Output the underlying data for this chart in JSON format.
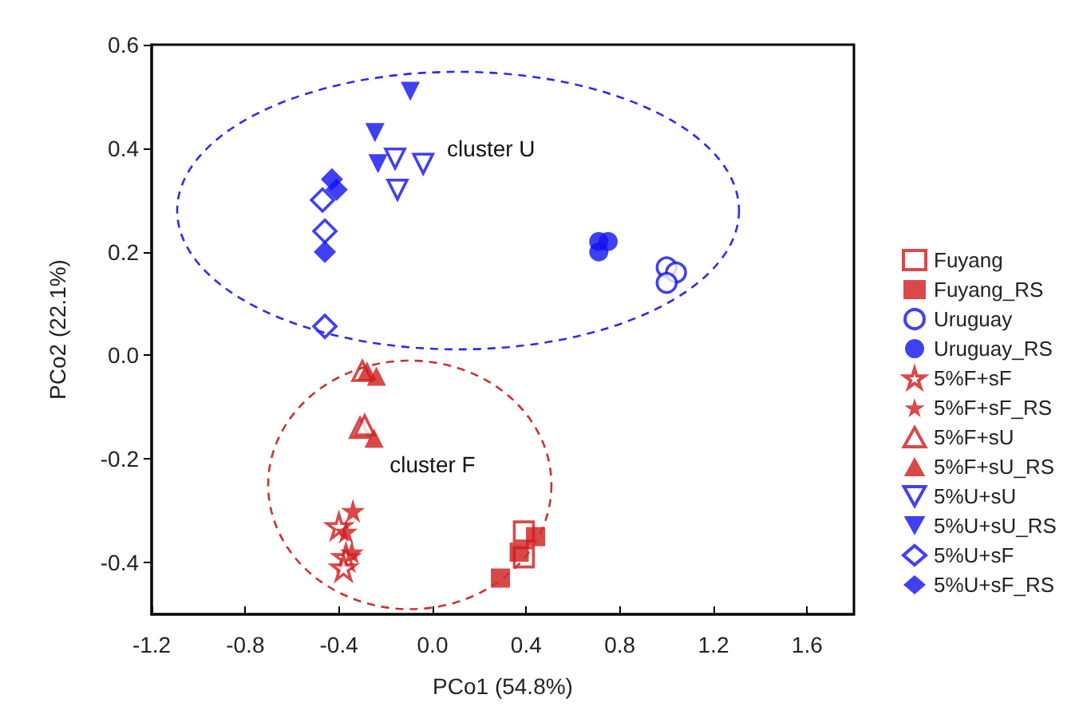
{
  "chart_data": {
    "type": "scatter",
    "xlabel": "PCo1 (54.8%)",
    "ylabel": "PCo2 (22.1%)",
    "xlim": [
      -1.2,
      1.8
    ],
    "xticks": [
      -1.2,
      -0.8,
      -0.4,
      {
        "value": 0,
        "label": "0.0"
      },
      0.4,
      0.8,
      1.2,
      1.6
    ],
    "ylim": [
      -0.5,
      0.6
    ],
    "yticks": [
      -0.4,
      -0.2,
      {
        "value": 0,
        "label": "0.0"
      },
      0.2,
      0.4,
      0.6
    ],
    "legend": "right",
    "annotations": [
      "cluster U",
      "cluster F"
    ],
    "series": [
      {
        "name": "Fuyang",
        "color": "#d01c1c",
        "marker": "square-open",
        "x": [
          0.39,
          0.39
        ],
        "values": [
          -0.34,
          -0.39
        ]
      },
      {
        "name": "Fuyang_RS",
        "color": "#d01c1c",
        "marker": "square",
        "x": [
          0.44,
          0.37,
          0.29
        ],
        "values": [
          -0.35,
          -0.38,
          -0.43
        ]
      },
      {
        "name": "Uruguay",
        "color": "#1010f0",
        "marker": "circle-open",
        "x": [
          1.0,
          1.04,
          1.0
        ],
        "values": [
          0.17,
          0.16,
          0.14
        ]
      },
      {
        "name": "Uruguay_RS",
        "color": "#1010f0",
        "marker": "circle",
        "x": [
          0.71,
          0.75,
          0.71
        ],
        "values": [
          0.22,
          0.22,
          0.2
        ]
      },
      {
        "name": "5%F+sF",
        "color": "#d01c1c",
        "marker": "star-open",
        "x": [
          -0.4,
          -0.37,
          -0.38
        ],
        "values": [
          -0.33,
          -0.39,
          -0.41
        ]
      },
      {
        "name": "5%F+sF_RS",
        "color": "#d01c1c",
        "marker": "star",
        "x": [
          -0.34,
          -0.37,
          -0.345
        ],
        "values": [
          -0.3,
          -0.34,
          -0.38
        ]
      },
      {
        "name": "5%F+sU",
        "color": "#d01c1c",
        "marker": "triangle-open",
        "x": [
          -0.3,
          -0.31,
          -0.29
        ],
        "values": [
          -0.03,
          -0.14,
          -0.135
        ]
      },
      {
        "name": "5%F+sU_RS",
        "color": "#d01c1c",
        "marker": "triangle",
        "x": [
          -0.24,
          -0.28,
          -0.25
        ],
        "values": [
          -0.04,
          -0.03,
          -0.16
        ]
      },
      {
        "name": "5%U+sU",
        "color": "#1010f0",
        "marker": "triangle-down-open",
        "x": [
          -0.16,
          -0.04,
          -0.15
        ],
        "values": [
          0.38,
          0.37,
          0.32
        ]
      },
      {
        "name": "5%U+sU_RS",
        "color": "#1010f0",
        "marker": "triangle-down",
        "x": [
          -0.095,
          -0.246,
          -0.233
        ],
        "values": [
          0.51,
          0.43,
          0.37
        ]
      },
      {
        "name": "5%U+sF",
        "color": "#1010f0",
        "marker": "diamond-open",
        "x": [
          -0.47,
          -0.46,
          -0.46
        ],
        "values": [
          0.3,
          0.24,
          0.056
        ]
      },
      {
        "name": "5%U+sF_RS",
        "color": "#1010f0",
        "marker": "diamond",
        "x": [
          -0.43,
          -0.41,
          -0.46
        ],
        "values": [
          0.34,
          0.32,
          0.2
        ]
      }
    ]
  }
}
